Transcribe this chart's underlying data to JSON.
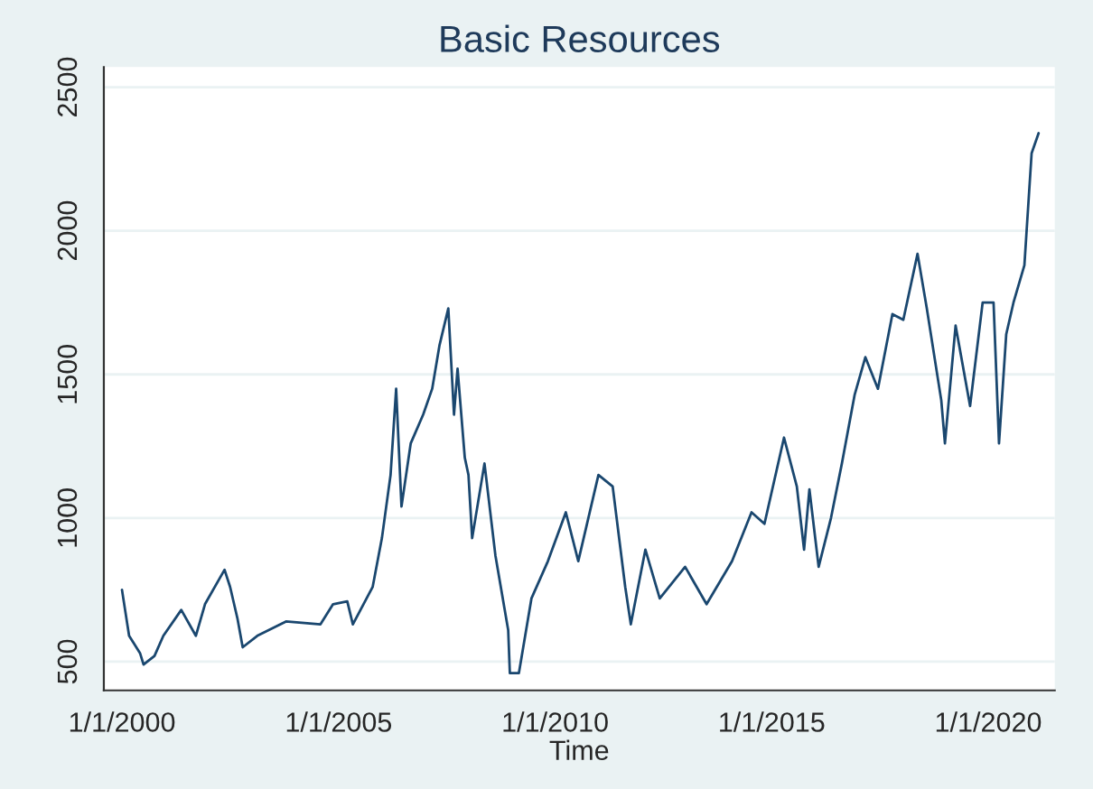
{
  "chart_data": {
    "type": "line",
    "title": "Basic Resources",
    "xlabel": "Time",
    "x": [
      "2000-01-01",
      "2000-03-01",
      "2000-06-01",
      "2000-07-01",
      "2000-10-01",
      "2000-12-15",
      "2001-05-15",
      "2001-09-15",
      "2001-12-01",
      "2002-05-15",
      "2002-07-01",
      "2002-09-01",
      "2002-10-15",
      "2003-02-15",
      "2003-10-15",
      "2004-08-01",
      "2004-11-15",
      "2005-03-15",
      "2005-05-01",
      "2005-10-15",
      "2006-01-01",
      "2006-03-15",
      "2006-05-01",
      "2006-06-15",
      "2006-09-01",
      "2006-12-15",
      "2007-03-01",
      "2007-05-01",
      "2007-07-15",
      "2007-09-01",
      "2007-10-01",
      "2007-12-01",
      "2008-01-01",
      "2008-02-01",
      "2008-05-15",
      "2008-08-15",
      "2008-12-01",
      "2008-12-15",
      "2009-03-01",
      "2009-06-15",
      "2009-11-01",
      "2010-04-01",
      "2010-07-15",
      "2011-01-01",
      "2011-05-01",
      "2011-08-15",
      "2011-10-01",
      "2012-02-01",
      "2012-06-01",
      "2013-01-01",
      "2013-07-01",
      "2014-02-01",
      "2014-07-15",
      "2014-11-01",
      "2015-04-15",
      "2015-08-01",
      "2015-10-01",
      "2015-11-15",
      "2016-02-01",
      "2016-05-15",
      "2016-08-15",
      "2016-12-01",
      "2017-03-01",
      "2017-06-15",
      "2017-10-15",
      "2018-01-15",
      "2018-05-15",
      "2018-08-01",
      "2018-12-01",
      "2019-01-01",
      "2019-04-01",
      "2019-08-01",
      "2019-11-15",
      "2020-02-15",
      "2020-04-01",
      "2020-06-01",
      "2020-08-01",
      "2020-11-01",
      "2021-01-01",
      "2021-03-01"
    ],
    "series": [
      {
        "color": "#1a476f",
        "values": [
          750,
          590,
          530,
          490,
          520,
          590,
          680,
          590,
          700,
          820,
          760,
          650,
          550,
          590,
          640,
          630,
          700,
          710,
          630,
          760,
          930,
          1150,
          1450,
          1040,
          1260,
          1360,
          1450,
          1600,
          1730,
          1360,
          1520,
          1210,
          1150,
          930,
          1190,
          870,
          610,
          460,
          460,
          720,
          850,
          1020,
          850,
          1150,
          1110,
          760,
          630,
          890,
          720,
          830,
          700,
          850,
          1020,
          980,
          1280,
          1110,
          890,
          1100,
          830,
          1000,
          1190,
          1430,
          1560,
          1450,
          1710,
          1690,
          1920,
          1730,
          1410,
          1260,
          1670,
          1390,
          1750,
          1750,
          1260,
          1640,
          1750,
          1880,
          2270,
          2340
        ]
      }
    ],
    "xlim": [
      "1999-08-01",
      "2021-07-15"
    ],
    "xticks": [
      {
        "value": "2000-01-01",
        "label": "1/1/2000"
      },
      {
        "value": "2005-01-01",
        "label": "1/1/2005"
      },
      {
        "value": "2010-01-01",
        "label": "1/1/2010"
      },
      {
        "value": "2015-01-01",
        "label": "1/1/2015"
      },
      {
        "value": "2020-01-01",
        "label": "1/1/2020"
      }
    ],
    "ylim": [
      400,
      2570
    ],
    "yticks": [
      500,
      1000,
      1500,
      2000,
      2500
    ],
    "grid": "y",
    "legend": false,
    "marker": "none",
    "line_style": "solid"
  }
}
